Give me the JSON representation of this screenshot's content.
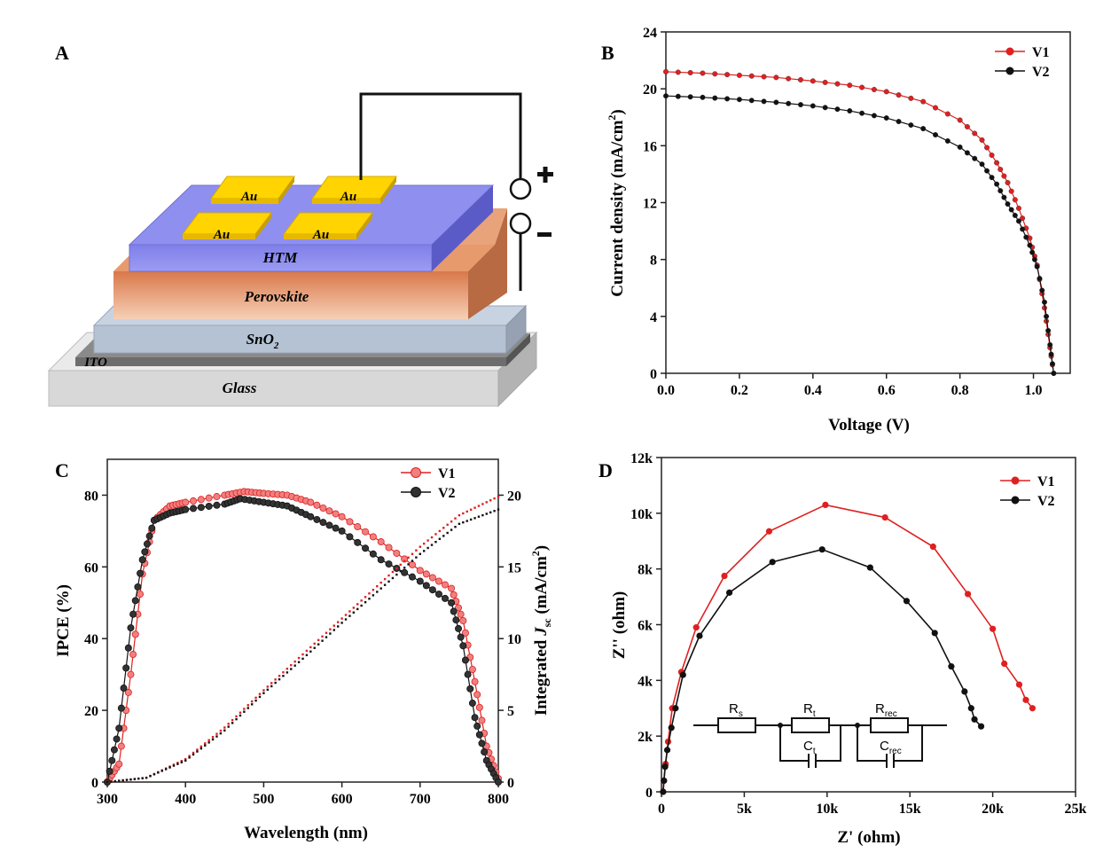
{
  "panels": {
    "A": {
      "letter": "A",
      "layers": {
        "glass": "Glass",
        "ito": "ITO",
        "sno2": "SnO",
        "sno2_sub": "2",
        "perovskite": "Perovskite",
        "htm": "HTM"
      },
      "electrode": "Au",
      "plus": "+",
      "minus": "-"
    },
    "B": {
      "letter": "B"
    },
    "C": {
      "letter": "C"
    },
    "D": {
      "letter": "D"
    }
  },
  "colors": {
    "v1": "#e02020",
    "v2": "#111111",
    "v1_fill": "#f08080",
    "v2_fill": "#333333"
  },
  "chart_data": [
    {
      "id": "B",
      "type": "line",
      "xlabel": "Voltage (V)",
      "ylabel_main": "Current density (mA/cm",
      "ylabel_sup": "2",
      "ylabel_end": ")",
      "xlim": [
        0,
        1.1
      ],
      "ylim": [
        0,
        24
      ],
      "xticks": [
        0.0,
        0.2,
        0.4,
        0.6,
        0.8,
        1.0
      ],
      "xtick_labels": [
        "0.0",
        "0.2",
        "0.4",
        "0.6",
        "0.8",
        "1.0"
      ],
      "yticks": [
        0,
        4,
        8,
        12,
        16,
        20,
        24
      ],
      "ytick_labels": [
        "0",
        "4",
        "8",
        "12",
        "16",
        "20",
        "24"
      ],
      "legend": "top-right",
      "series": [
        {
          "name": "V1",
          "points": [
            [
              0,
              21.2
            ],
            [
              0.1,
              21.1
            ],
            [
              0.2,
              20.95
            ],
            [
              0.3,
              20.8
            ],
            [
              0.4,
              20.55
            ],
            [
              0.5,
              20.25
            ],
            [
              0.6,
              19.8
            ],
            [
              0.7,
              19.1
            ],
            [
              0.8,
              17.8
            ],
            [
              0.86,
              16.4
            ],
            [
              0.9,
              14.8
            ],
            [
              0.93,
              13.4
            ],
            [
              0.96,
              11.6
            ],
            [
              0.99,
              9.5
            ],
            [
              1.01,
              7.6
            ],
            [
              1.03,
              4.6
            ],
            [
              1.045,
              1.8
            ],
            [
              1.055,
              0
            ]
          ]
        },
        {
          "name": "V2",
          "points": [
            [
              0,
              19.5
            ],
            [
              0.1,
              19.4
            ],
            [
              0.2,
              19.25
            ],
            [
              0.3,
              19.05
            ],
            [
              0.4,
              18.8
            ],
            [
              0.5,
              18.45
            ],
            [
              0.6,
              17.95
            ],
            [
              0.7,
              17.2
            ],
            [
              0.8,
              15.9
            ],
            [
              0.86,
              14.7
            ],
            [
              0.9,
              13.3
            ],
            [
              0.93,
              11.9
            ],
            [
              0.96,
              10.7
            ],
            [
              0.99,
              9.0
            ],
            [
              1.01,
              7.5
            ],
            [
              1.03,
              5.0
            ],
            [
              1.045,
              2.0
            ],
            [
              1.055,
              0
            ]
          ]
        }
      ]
    },
    {
      "id": "C",
      "type": "line",
      "xlabel": "Wavelength (nm)",
      "ylabel": "IPCE (%)",
      "y2label_main": "Integrated ",
      "y2label_j": "J",
      "y2label_sub": "sc",
      "y2label_units": "  (mA/cm",
      "y2label_sup": "2",
      "y2label_end": ")",
      "xlim": [
        300,
        800
      ],
      "ylim": [
        0,
        90
      ],
      "y2lim": [
        0,
        22.5
      ],
      "xticks": [
        300,
        400,
        500,
        600,
        700,
        800
      ],
      "xtick_labels": [
        "300",
        "400",
        "500",
        "600",
        "700",
        "800"
      ],
      "yticks": [
        0,
        20,
        40,
        60,
        80
      ],
      "ytick_labels": [
        "0",
        "20",
        "40",
        "60",
        "80"
      ],
      "y2ticks": [
        0,
        5,
        10,
        15,
        20
      ],
      "y2tick_labels": [
        "0",
        "5",
        "10",
        "15",
        "20"
      ],
      "legend": "top-right",
      "series": [
        {
          "name": "V1",
          "points": [
            [
              300,
              0
            ],
            [
              315,
              5
            ],
            [
              330,
              30
            ],
            [
              345,
              58
            ],
            [
              360,
              73
            ],
            [
              380,
              77
            ],
            [
              400,
              78
            ],
            [
              450,
              80
            ],
            [
              475,
              81
            ],
            [
              500,
              80.5
            ],
            [
              530,
              80
            ],
            [
              560,
              78
            ],
            [
              600,
              74
            ],
            [
              650,
              67
            ],
            [
              700,
              59
            ],
            [
              740,
              54
            ],
            [
              755,
              45
            ],
            [
              770,
              28
            ],
            [
              785,
              10
            ],
            [
              800,
              1
            ]
          ]
        },
        {
          "name": "V2",
          "points": [
            [
              300,
              0
            ],
            [
              315,
              15
            ],
            [
              330,
              43
            ],
            [
              345,
              62
            ],
            [
              360,
              73
            ],
            [
              380,
              75
            ],
            [
              400,
              76
            ],
            [
              450,
              77.5
            ],
            [
              470,
              79
            ],
            [
              500,
              78
            ],
            [
              530,
              77
            ],
            [
              560,
              74
            ],
            [
              600,
              70
            ],
            [
              650,
              62
            ],
            [
              700,
              56
            ],
            [
              740,
              50
            ],
            [
              755,
              38
            ],
            [
              770,
              18
            ],
            [
              785,
              6
            ],
            [
              800,
              0
            ]
          ]
        },
        {
          "name": "V1 integrated Jsc",
          "points": [
            [
              300,
              0
            ],
            [
              350,
              0.3
            ],
            [
              400,
              1.6
            ],
            [
              450,
              3.8
            ],
            [
              500,
              6.4
            ],
            [
              550,
              8.9
            ],
            [
              600,
              11.4
            ],
            [
              650,
              13.9
            ],
            [
              700,
              16.4
            ],
            [
              750,
              18.6
            ],
            [
              800,
              19.9
            ]
          ]
        },
        {
          "name": "V2 integrated Jsc",
          "points": [
            [
              300,
              0
            ],
            [
              350,
              0.3
            ],
            [
              400,
              1.5
            ],
            [
              450,
              3.6
            ],
            [
              500,
              6.2
            ],
            [
              550,
              8.6
            ],
            [
              600,
              11.1
            ],
            [
              650,
              13.5
            ],
            [
              700,
              15.9
            ],
            [
              750,
              18.0
            ],
            [
              800,
              19.0
            ]
          ]
        }
      ]
    },
    {
      "id": "D",
      "type": "line",
      "xlabel": "Z' (ohm)",
      "ylabel": "Z'' (ohm)",
      "xlim": [
        0,
        25000
      ],
      "ylim": [
        0,
        12000
      ],
      "xticks": [
        0,
        5000,
        10000,
        15000,
        20000,
        25000
      ],
      "xtick_labels": [
        "0",
        "5k",
        "10k",
        "15k",
        "20k",
        "25k"
      ],
      "yticks": [
        0,
        2000,
        4000,
        6000,
        8000,
        10000,
        12000
      ],
      "ytick_labels": [
        "0",
        "2k",
        "4k",
        "6k",
        "8k",
        "10k",
        "12k"
      ],
      "legend": "top-right",
      "inset_circuit": {
        "rs": "R",
        "rs_sub": "s",
        "rt": "R",
        "rt_sub": "t",
        "ct": "C",
        "ct_sub": "t",
        "rrec": "R",
        "rrec_sub": "rec",
        "crec": "C",
        "crec_sub": "rec"
      },
      "series": [
        {
          "name": "V1",
          "points": [
            [
              100,
              0
            ],
            [
              150,
              400
            ],
            [
              250,
              1000
            ],
            [
              400,
              1800
            ],
            [
              650,
              3000
            ],
            [
              1200,
              4300
            ],
            [
              2100,
              5900
            ],
            [
              3800,
              7750
            ],
            [
              6500,
              9350
            ],
            [
              9900,
              10300
            ],
            [
              13500,
              9850
            ],
            [
              16400,
              8800
            ],
            [
              18500,
              7100
            ],
            [
              20000,
              5850
            ],
            [
              20700,
              4600
            ],
            [
              21600,
              3850
            ],
            [
              22000,
              3300
            ],
            [
              22400,
              3000
            ]
          ]
        },
        {
          "name": "V2",
          "points": [
            [
              100,
              0
            ],
            [
              150,
              400
            ],
            [
              220,
              900
            ],
            [
              350,
              1500
            ],
            [
              600,
              2300
            ],
            [
              850,
              3000
            ],
            [
              1300,
              4200
            ],
            [
              2300,
              5600
            ],
            [
              4100,
              7150
            ],
            [
              6700,
              8250
            ],
            [
              9700,
              8700
            ],
            [
              12600,
              8050
            ],
            [
              14800,
              6850
            ],
            [
              16500,
              5700
            ],
            [
              17500,
              4500
            ],
            [
              18300,
              3600
            ],
            [
              18700,
              3000
            ],
            [
              18900,
              2600
            ],
            [
              19300,
              2350
            ]
          ]
        }
      ]
    }
  ]
}
